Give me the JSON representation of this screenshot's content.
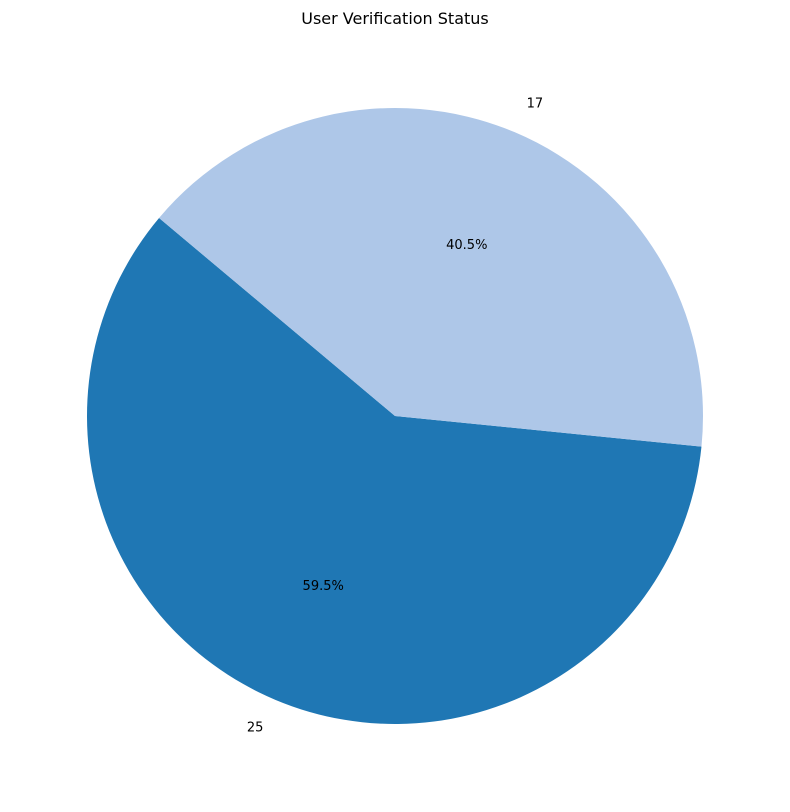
{
  "chart_data": {
    "type": "pie",
    "title": "User Verification Status",
    "slices": [
      {
        "label": "25",
        "value": 25,
        "percent_label": "59.5%",
        "color": "#1f77b4"
      },
      {
        "label": "17",
        "value": 17,
        "percent_label": "40.5%",
        "color": "#aec7e8"
      }
    ],
    "start_angle_deg": 140,
    "direction": "counterclockwise",
    "legend": "none"
  }
}
